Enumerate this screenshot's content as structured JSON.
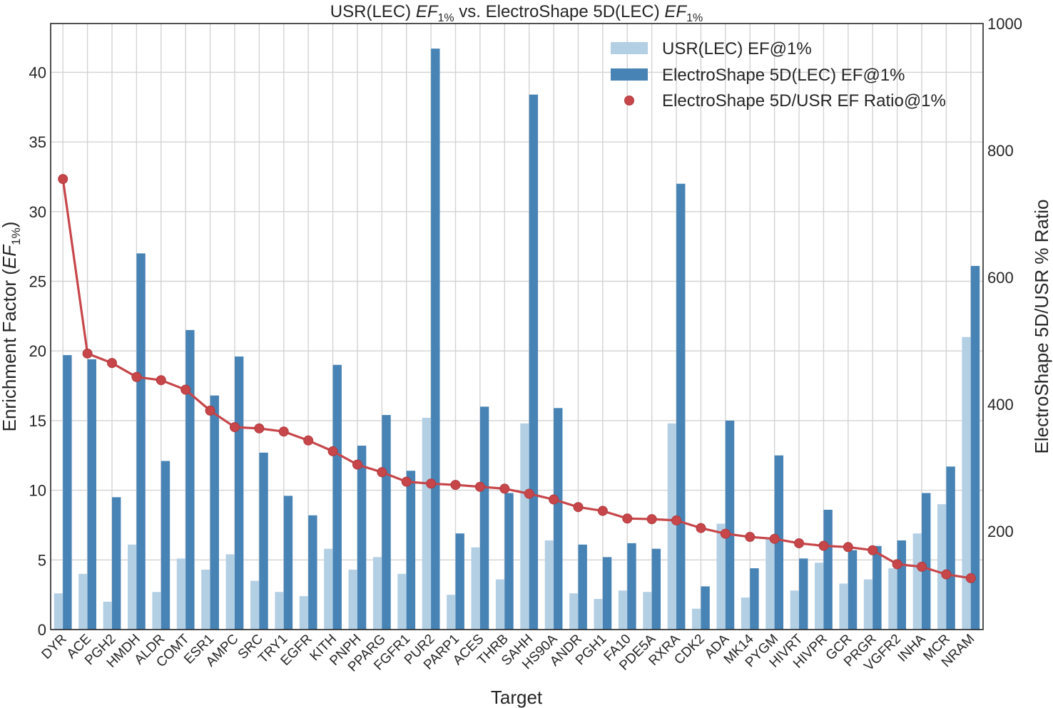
{
  "chart_data": {
    "type": "bar",
    "title": "USR(LEC) EF1% vs. ElectroShape 5D(LEC) EF1%",
    "title_parts": {
      "pre": "USR(LEC) ",
      "ef": "EF",
      "sub": "1%",
      "mid": " vs. ElectroShape 5D(LEC) "
    },
    "xlabel": "Target",
    "ylabel": "Enrichment Factor (EF1%)",
    "ylabel_parts": {
      "pre": "Enrichment Factor (",
      "ef": "EF",
      "sub": "1%",
      "post": ")"
    },
    "y2label": "ElectroShape 5D/USR % Ratio",
    "ylim": [
      0,
      43.5
    ],
    "yticks": [
      0,
      5,
      10,
      15,
      20,
      25,
      30,
      35,
      40
    ],
    "y2lim": [
      45,
      1000
    ],
    "y2ticks": [
      200,
      400,
      600,
      800,
      1000
    ],
    "grid": true,
    "legend_position": "top-right",
    "categories": [
      "DYR",
      "ACE",
      "PGH2",
      "HMDH",
      "ALDR",
      "COMT",
      "ESR1",
      "AMPC",
      "SRC",
      "TRY1",
      "EGFR",
      "KITH",
      "PNPH",
      "PPARG",
      "FGFR1",
      "PUR2",
      "PARP1",
      "ACES",
      "THRB",
      "SAHH",
      "HS90A",
      "ANDR",
      "PGH1",
      "FA10",
      "PDE5A",
      "RXRA",
      "CDK2",
      "ADA",
      "MK14",
      "PYGM",
      "HIVRT",
      "HIVPR",
      "GCR",
      "PRGR",
      "VGFR2",
      "INHA",
      "MCR",
      "NRAM"
    ],
    "series": [
      {
        "name": "USR(LEC) EF@1%",
        "kind": "bar",
        "axis": "left",
        "color": "#b3cfe4",
        "values": [
          2.6,
          4.0,
          2.0,
          6.1,
          2.7,
          5.1,
          4.3,
          5.4,
          3.5,
          2.7,
          2.4,
          5.8,
          4.3,
          5.2,
          4.0,
          15.2,
          2.5,
          5.9,
          3.6,
          14.8,
          6.4,
          2.6,
          2.2,
          2.8,
          2.7,
          14.8,
          1.5,
          7.6,
          2.3,
          6.6,
          2.8,
          4.8,
          3.3,
          3.6,
          4.4,
          6.9,
          9.0,
          21.0
        ]
      },
      {
        "name": "ElectroShape 5D(LEC) EF@1%",
        "kind": "bar",
        "axis": "left",
        "color": "#4783b5",
        "values": [
          19.7,
          19.4,
          9.5,
          27.0,
          12.1,
          21.5,
          16.8,
          19.6,
          12.7,
          9.6,
          8.2,
          19.0,
          13.2,
          15.4,
          11.4,
          41.7,
          6.9,
          16.0,
          9.8,
          38.4,
          15.9,
          6.1,
          5.2,
          6.2,
          5.8,
          32.0,
          3.1,
          15.0,
          4.4,
          12.5,
          5.1,
          8.6,
          5.7,
          6.0,
          6.4,
          9.8,
          11.7,
          26.1
        ]
      },
      {
        "name": "ElectroShape 5D/USR EF Ratio@1%",
        "kind": "line",
        "axis": "right",
        "color": "#c7464a",
        "values": [
          755,
          480,
          465,
          443,
          438,
          423,
          390,
          364,
          362,
          357,
          343,
          326,
          305,
          293,
          278,
          275,
          273,
          270,
          267,
          259,
          250,
          238,
          232,
          220,
          219,
          217,
          205,
          196,
          191,
          188,
          181,
          177,
          175,
          170,
          148,
          144,
          132,
          126
        ]
      }
    ]
  }
}
